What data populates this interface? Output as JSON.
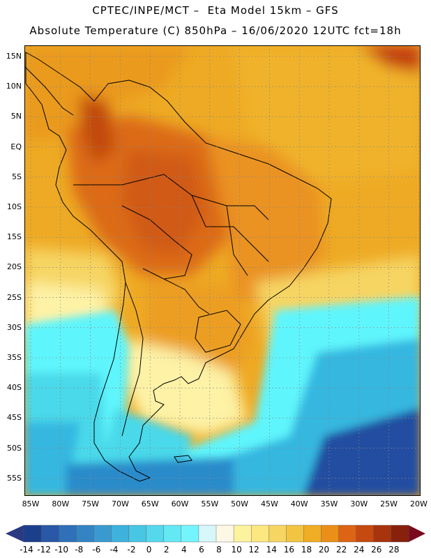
{
  "header": {
    "title_line1": "CPTEC/INPE/MCT –  Eta Model 15km – GFS",
    "title_line2": "Absolute Temperature (C) 850hPa – 16/06/2020 12UTC fct=18h"
  },
  "map": {
    "lat_ticks": [
      "15N",
      "10N",
      "5N",
      "EQ",
      "5S",
      "10S",
      "15S",
      "20S",
      "25S",
      "30S",
      "35S",
      "40S",
      "45S",
      "50S",
      "55S"
    ],
    "lon_ticks": [
      "85W",
      "80W",
      "75W",
      "70W",
      "65W",
      "60W",
      "55W",
      "50W",
      "45W",
      "40W",
      "35W",
      "30W",
      "25W",
      "20W"
    ],
    "field_colors": {
      "hot_28": "#c24a10",
      "warm_24": "#dc6a14",
      "warm_20": "#ea9a1e",
      "warm_18": "#f0b22a",
      "mild_14": "#f6d563",
      "mild_10": "#fdf2a6",
      "cool_6": "#fdfbe3",
      "cool_4": "#d4f6fa",
      "cold_2": "#5ff5fc",
      "cold_0": "#4ad9ea",
      "cold_m4": "#35b7e0",
      "cold_m8": "#2c8bcb",
      "cold_m12": "#214ea0"
    }
  },
  "colorbar": {
    "labels": [
      "-14",
      "-12",
      "-10",
      "-8",
      "-6",
      "-4",
      "-2",
      "0",
      "2",
      "4",
      "6",
      "8",
      "10",
      "12",
      "14",
      "16",
      "18",
      "20",
      "22",
      "24",
      "26",
      "28"
    ],
    "colors": [
      "#1c3f8c",
      "#2858a6",
      "#2f70b8",
      "#3484c4",
      "#3a9ad0",
      "#3fb2dc",
      "#48c6e4",
      "#55d8ec",
      "#64e8f4",
      "#74f4fc",
      "#d6f6fa",
      "#fdf8e6",
      "#fdf39e",
      "#fbe880",
      "#f6d563",
      "#f2c441",
      "#efad23",
      "#ea8f18",
      "#dd6414",
      "#c6490f",
      "#a8340d",
      "#87210c"
    ],
    "under_color": "#2a3a82",
    "over_color": "#7a0a1e"
  }
}
